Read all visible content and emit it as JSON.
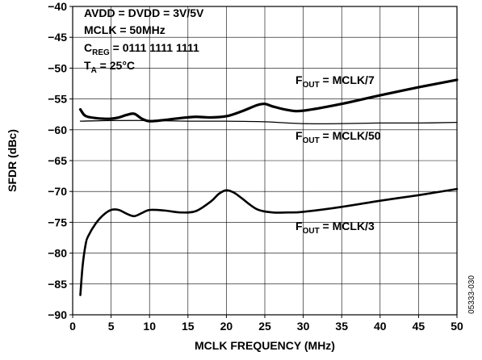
{
  "chart_data": {
    "type": "line",
    "xlabel": "MCLK FREQUENCY (MHz)",
    "ylabel": "SFDR (dBc)",
    "xlim": [
      0,
      50
    ],
    "ylim": [
      -90,
      -40
    ],
    "xticks": [
      0,
      5,
      10,
      15,
      20,
      25,
      30,
      35,
      40,
      45,
      50
    ],
    "yticks": [
      -90,
      -85,
      -80,
      -75,
      -70,
      -65,
      -60,
      -55,
      -50,
      -45,
      -40
    ],
    "grid": true,
    "conditions": [
      {
        "text": "AVDD = DVDD = 3V/5V"
      },
      {
        "text": "MCLK = 50MHz"
      },
      {
        "main": "C",
        "sub": "REG",
        "rest": " = 0111 1111 1111"
      },
      {
        "main": "T",
        "sub": "A",
        "rest": " = 25°C"
      }
    ],
    "series": [
      {
        "name": "MCLK/7",
        "label_main": "F",
        "label_sub": "OUT",
        "label_rest": " = MCLK/7",
        "color": "#000000",
        "weight": "thick",
        "x": [
          1,
          1.5,
          2,
          3,
          4,
          5,
          6,
          7,
          8,
          9,
          10,
          12,
          14,
          16,
          18,
          20,
          22,
          24,
          25,
          26,
          28,
          30,
          35,
          40,
          45,
          50
        ],
        "y": [
          -56.7,
          -57.6,
          -57.9,
          -58.1,
          -58.2,
          -58.2,
          -58.0,
          -57.6,
          -57.4,
          -58.2,
          -58.6,
          -58.4,
          -58.1,
          -57.9,
          -58.0,
          -57.8,
          -57.0,
          -56.0,
          -55.8,
          -56.2,
          -56.8,
          -56.9,
          -55.8,
          -54.4,
          -53.1,
          -51.9
        ]
      },
      {
        "name": "MCLK/50",
        "label_main": "F",
        "label_sub": "OUT",
        "label_rest": " = MCLK/50",
        "color": "#000000",
        "weight": "thin",
        "x": [
          1,
          5,
          10,
          15,
          20,
          25,
          30,
          35,
          40,
          45,
          50
        ],
        "y": [
          -58.6,
          -58.5,
          -58.5,
          -58.6,
          -58.6,
          -58.7,
          -59.0,
          -59.0,
          -58.9,
          -58.9,
          -58.8
        ]
      },
      {
        "name": "MCLK/3",
        "label_main": "F",
        "label_sub": "OUT",
        "label_rest": " = MCLK/3",
        "color": "#000000",
        "weight": "medium",
        "x": [
          1,
          1.3,
          1.7,
          2,
          3,
          4,
          5,
          6,
          7,
          8,
          9,
          10,
          12,
          14,
          16,
          18,
          19,
          20,
          21,
          22,
          24,
          26,
          28,
          30,
          35,
          40,
          45,
          50
        ],
        "y": [
          -86.8,
          -82.0,
          -78.5,
          -77.3,
          -75.2,
          -73.8,
          -73.0,
          -73.0,
          -73.6,
          -74.0,
          -73.5,
          -73.0,
          -73.1,
          -73.4,
          -73.2,
          -71.6,
          -70.4,
          -69.8,
          -70.2,
          -71.1,
          -72.9,
          -73.4,
          -73.4,
          -73.3,
          -72.5,
          -71.5,
          -70.6,
          -69.6
        ]
      }
    ]
  },
  "figure_code": "05333-030"
}
